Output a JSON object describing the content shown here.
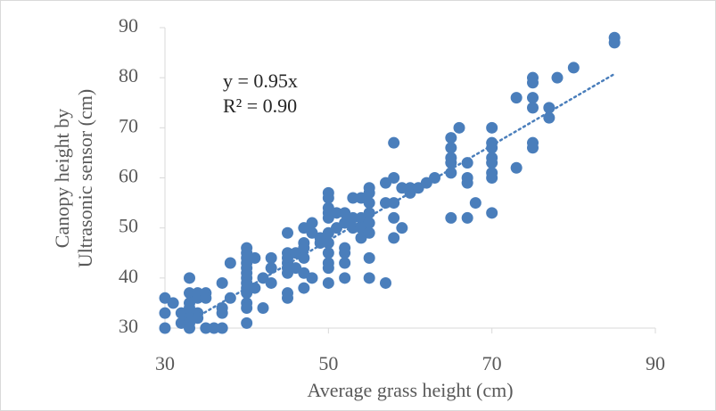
{
  "chart_data": {
    "type": "scatter",
    "x_label": "Average grass height (cm)",
    "y_label": [
      "Canopy height by",
      "Ultrasonic sensor (cm)"
    ],
    "series": [
      {
        "color": "#4a7ebb",
        "x": [
          30,
          30,
          30,
          31,
          32,
          32,
          33,
          33,
          33,
          33,
          33,
          33,
          33,
          34,
          34,
          34,
          34,
          35,
          35,
          35,
          36,
          37,
          37,
          37,
          37,
          38,
          38,
          40,
          40,
          40,
          40,
          40,
          40,
          40,
          40,
          40,
          40,
          40,
          40,
          40,
          41,
          41,
          42,
          42,
          43,
          43,
          43,
          45,
          45,
          45,
          45,
          45,
          45,
          45,
          45,
          46,
          46,
          47,
          47,
          47,
          47,
          47,
          47,
          48,
          48,
          48,
          49,
          49,
          50,
          50,
          50,
          50,
          50,
          50,
          50,
          50,
          50,
          50,
          50,
          51,
          51,
          52,
          52,
          52,
          52,
          52,
          52,
          53,
          53,
          53,
          54,
          54,
          54,
          54,
          55,
          55,
          55,
          55,
          55,
          55,
          55,
          55,
          57,
          57,
          57,
          58,
          58,
          58,
          58,
          58,
          59,
          59,
          60,
          60,
          61,
          62,
          63,
          65,
          65,
          65,
          65,
          65,
          65,
          66,
          67,
          67,
          67,
          67,
          68,
          70,
          70,
          70,
          70,
          70,
          70,
          70,
          70,
          73,
          73,
          75,
          75,
          75,
          75,
          75,
          75,
          77,
          77,
          78,
          80,
          85,
          85
        ],
        "values": [
          36,
          33,
          30,
          35,
          33,
          31,
          40,
          37,
          35,
          34,
          32,
          31,
          30,
          37,
          36,
          33,
          32,
          37,
          36,
          30,
          30,
          39,
          34,
          33,
          30,
          43,
          36,
          46,
          45,
          44,
          43,
          42,
          41,
          40,
          39,
          38,
          37,
          35,
          34,
          31,
          44,
          38,
          40,
          34,
          44,
          42,
          39,
          49,
          45,
          44,
          43,
          42,
          41,
          37,
          36,
          45,
          42,
          50,
          47,
          46,
          44,
          41,
          38,
          51,
          49,
          40,
          48,
          47,
          57,
          56,
          54,
          53,
          52,
          49,
          47,
          45,
          43,
          42,
          39,
          53,
          50,
          53,
          51,
          46,
          45,
          43,
          40,
          56,
          52,
          50,
          56,
          52,
          50,
          48,
          58,
          57,
          55,
          53,
          51,
          49,
          44,
          40,
          59,
          55,
          39,
          67,
          60,
          55,
          52,
          48,
          58,
          50,
          58,
          57,
          58,
          59,
          60,
          68,
          66,
          64,
          63,
          61,
          52,
          70,
          63,
          60,
          59,
          52,
          55,
          70,
          67,
          66,
          64,
          63,
          61,
          60,
          53,
          76,
          62,
          80,
          79,
          76,
          74,
          67,
          66,
          74,
          72,
          80,
          82,
          88,
          87
        ]
      }
    ],
    "trendline": {
      "slope": 0.95,
      "x": [
        32,
        85
      ],
      "color": "#4a7ebb",
      "equation": "y = 0.95x",
      "r2": "R² = 0.90"
    },
    "xlim": [
      30,
      90
    ],
    "xticks": [
      30,
      50,
      70,
      90
    ],
    "ylim": [
      30,
      90
    ],
    "yticks": [
      30,
      40,
      50,
      60,
      70,
      80,
      90
    ]
  }
}
